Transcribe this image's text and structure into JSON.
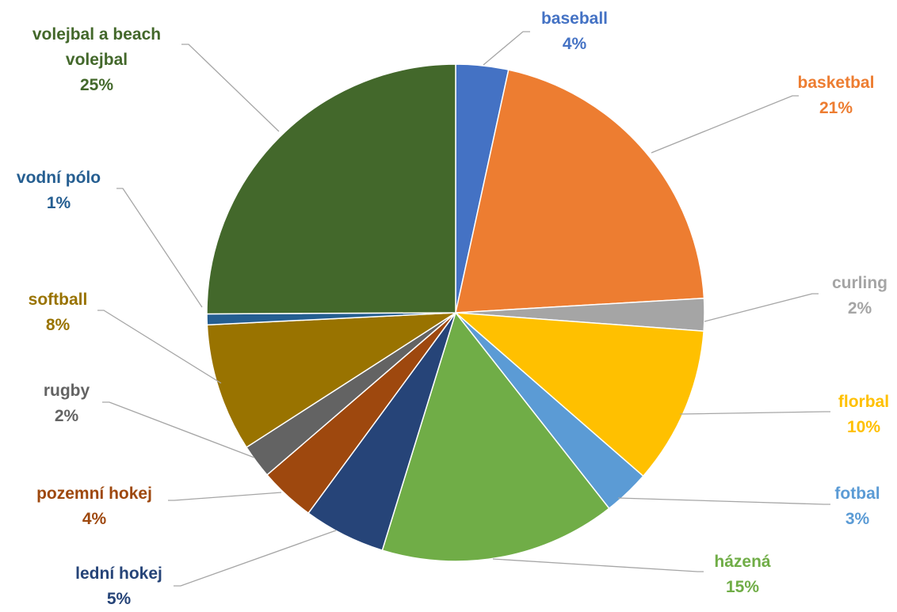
{
  "chart_data": {
    "type": "pie",
    "title": "",
    "slices": [
      {
        "label": "baseball",
        "pct_text": "4%",
        "value": 3.4,
        "color": "#4472c4"
      },
      {
        "label": "basketbal",
        "pct_text": "21%",
        "value": 20.6,
        "color": "#ed7d31"
      },
      {
        "label": "curling",
        "pct_text": "2%",
        "value": 2.1,
        "color": "#a5a5a5"
      },
      {
        "label": "florbal",
        "pct_text": "10%",
        "value": 10.2,
        "color": "#ffc000"
      },
      {
        "label": "fotbal",
        "pct_text": "3%",
        "value": 3.0,
        "color": "#5b9bd5"
      },
      {
        "label": "házená",
        "pct_text": "15%",
        "value": 15.3,
        "color": "#70ad47"
      },
      {
        "label": "lední hokej",
        "pct_text": "5%",
        "value": 5.3,
        "color": "#264478"
      },
      {
        "label": "pozemní hokej",
        "pct_text": "4%",
        "value": 3.6,
        "color": "#9e480e"
      },
      {
        "label": "rugby",
        "pct_text": "2%",
        "value": 2.2,
        "color": "#636363"
      },
      {
        "label": "softball",
        "pct_text": "8%",
        "value": 8.3,
        "color": "#997300"
      },
      {
        "label": "vodní pólo",
        "pct_text": "1%",
        "value": 0.7,
        "color": "#255e91"
      },
      {
        "label": "volejbal a beach volejbal",
        "pct_text": "25%",
        "value": 25.0,
        "color": "#43682b"
      }
    ]
  }
}
